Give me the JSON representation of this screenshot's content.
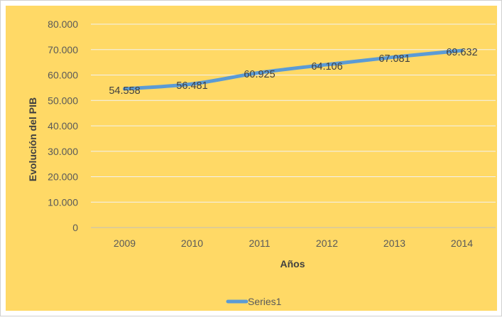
{
  "chart_data": {
    "type": "line",
    "categories": [
      "2009",
      "2010",
      "2011",
      "2012",
      "2013",
      "2014"
    ],
    "series": [
      {
        "name": "Series1",
        "values": [
          54558,
          56481,
          60925,
          64106,
          67081,
          69632
        ],
        "value_labels": [
          "54.558",
          "56.481",
          "60.925",
          "64.106",
          "67.081",
          "69.632"
        ]
      }
    ],
    "ylim": [
      0,
      80000
    ],
    "yticks": [
      0,
      10000,
      20000,
      30000,
      40000,
      50000,
      60000,
      70000,
      80000
    ],
    "ytick_labels": [
      "0",
      "10.000",
      "20.000",
      "30.000",
      "40.000",
      "50.000",
      "60.000",
      "70.000",
      "80.000"
    ],
    "xlabel": "Años",
    "ylabel": "Evolución del PIB",
    "grid": true,
    "legend": "bottom",
    "colors": {
      "background": "#ffd966",
      "series": "#5b9bd5",
      "grid": "#f2f2f2"
    }
  }
}
